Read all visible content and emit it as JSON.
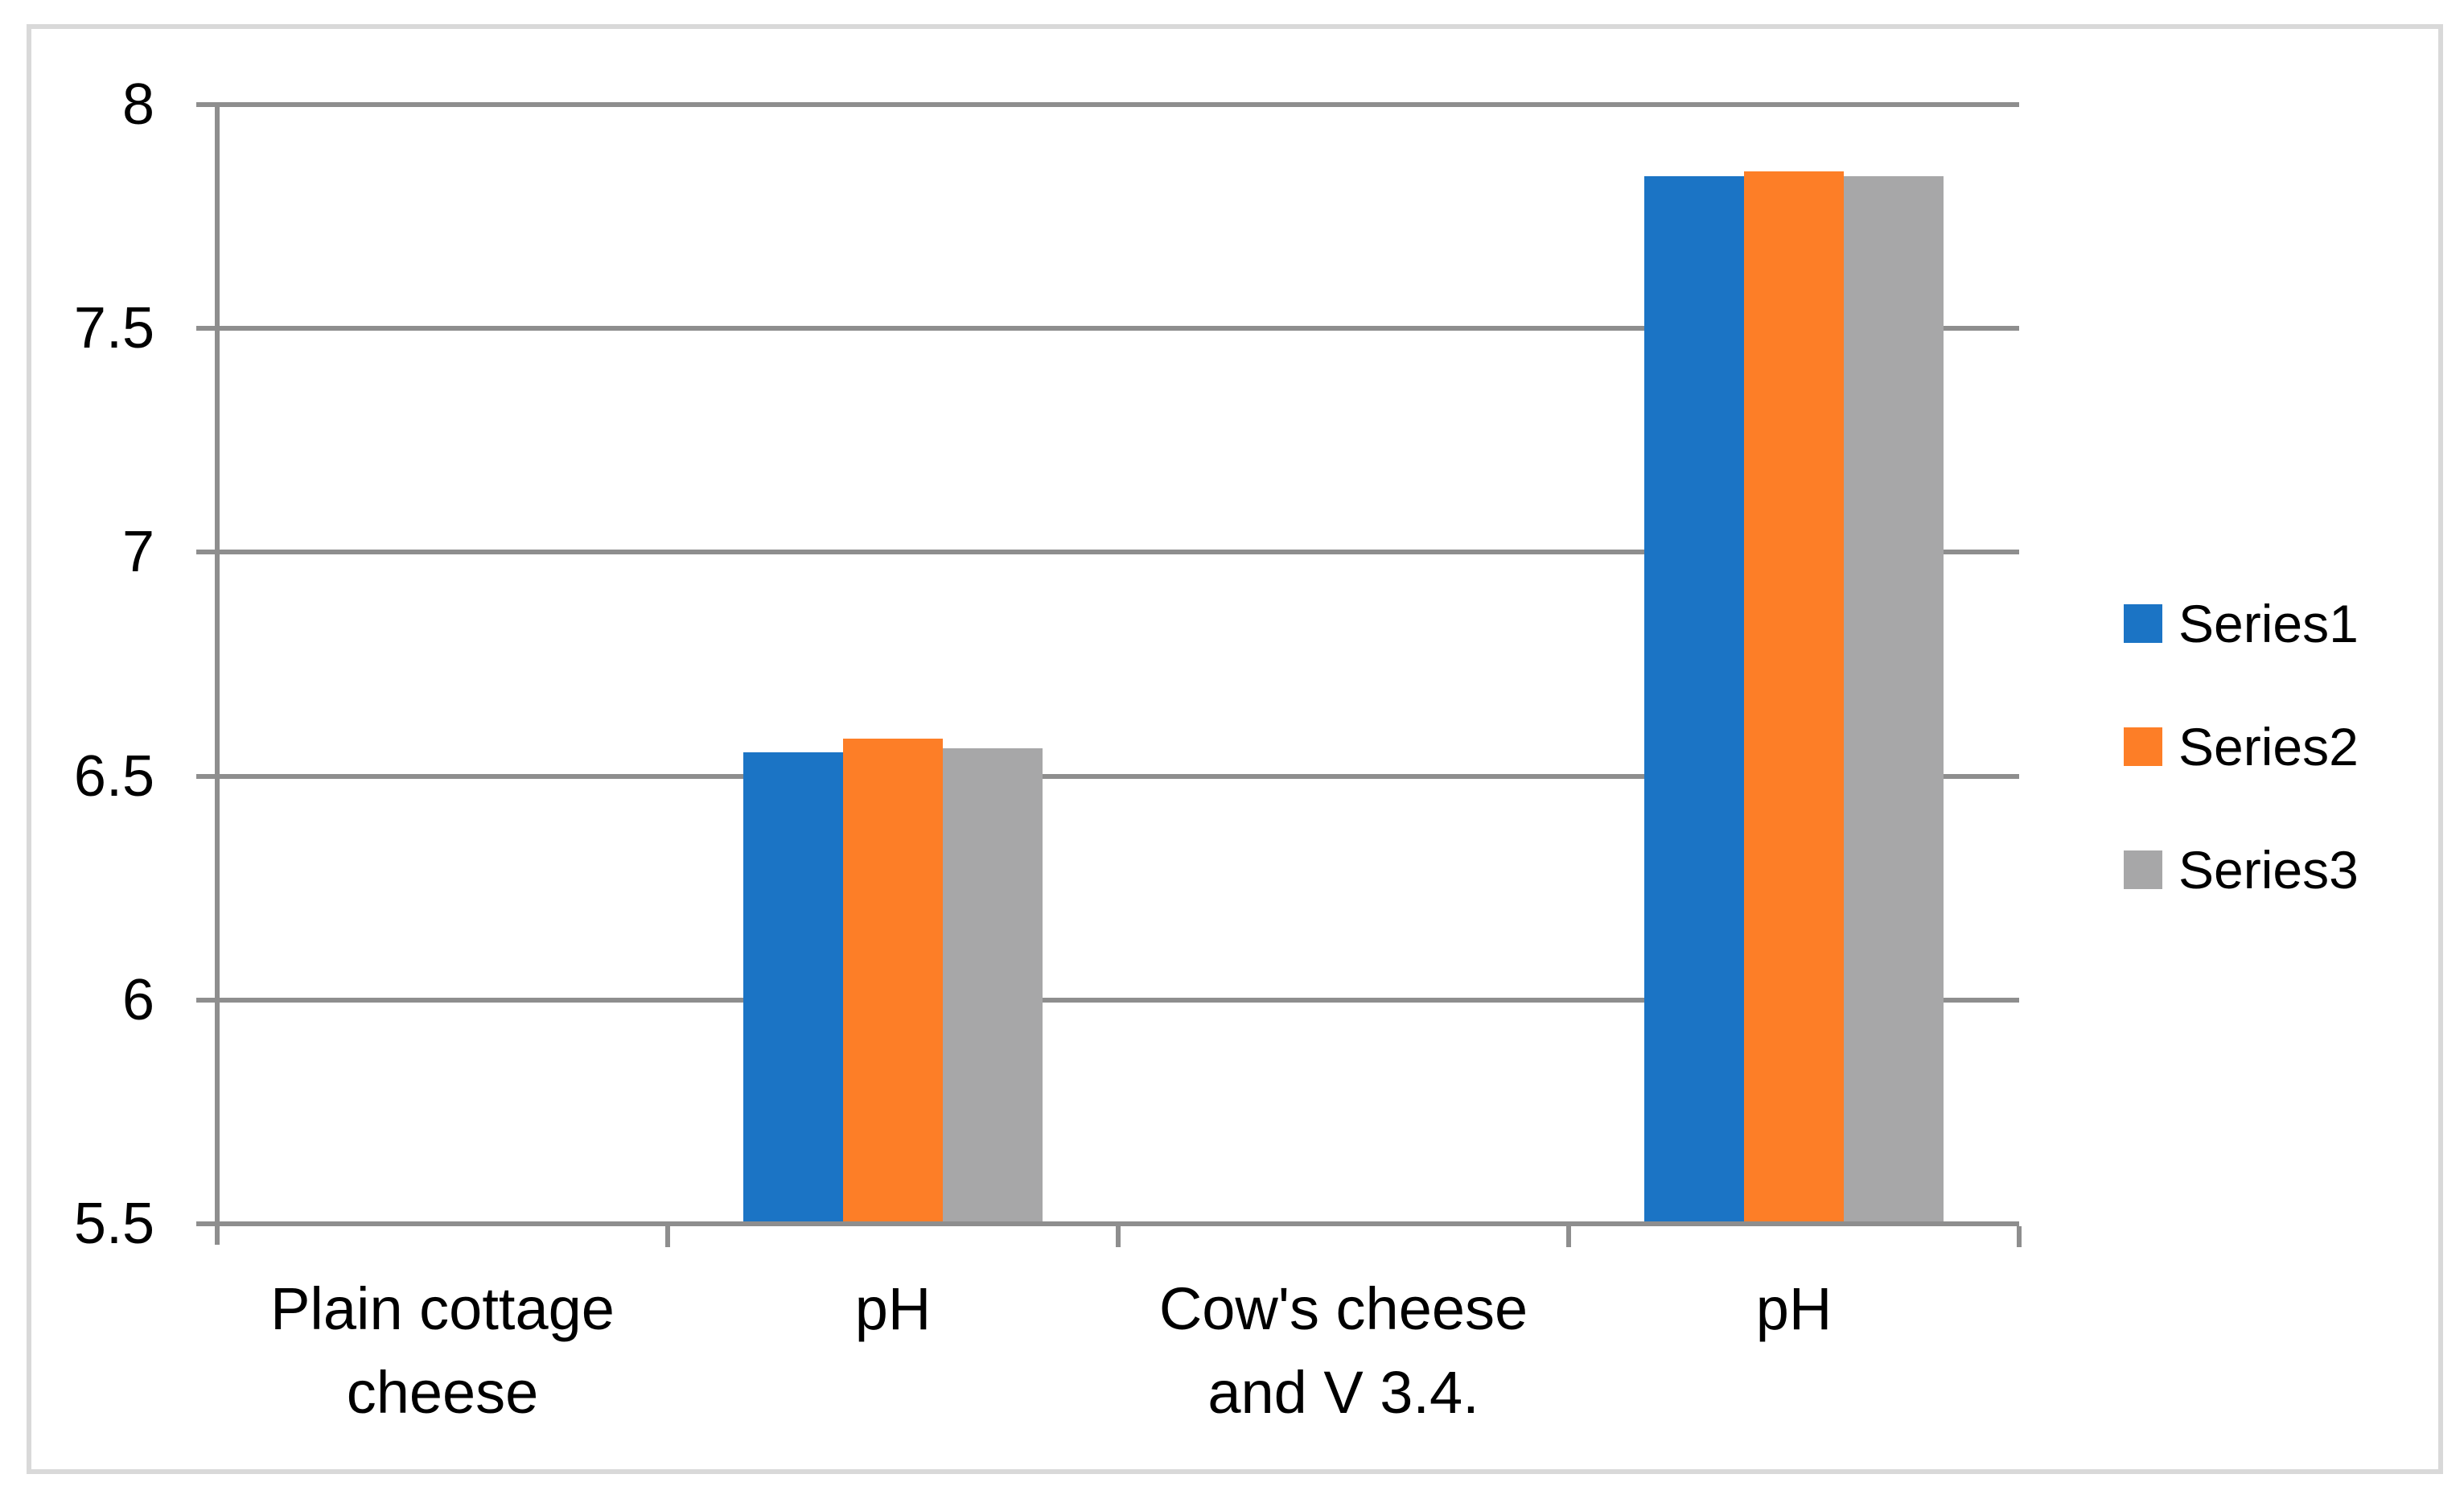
{
  "chart_data": {
    "type": "bar",
    "title": "",
    "xlabel": "",
    "ylabel": "",
    "categories": [
      "Plain cottage cheese",
      "pH",
      "Cow's cheese and V 3.4.",
      "pH"
    ],
    "categories_multiline": [
      "Plain cottage\ncheese",
      "pH",
      "Cow's cheese\nand V 3.4.",
      "pH"
    ],
    "series": [
      {
        "name": "Series1",
        "color": "#1B74C5",
        "values": [
          null,
          6.55,
          null,
          7.84
        ]
      },
      {
        "name": "Series2",
        "color": "#FD7E27",
        "values": [
          null,
          6.58,
          null,
          7.85
        ]
      },
      {
        "name": "Series3",
        "color": "#A7A7A8",
        "values": [
          null,
          6.56,
          null,
          7.84
        ]
      }
    ],
    "ylim": [
      5.5,
      8
    ],
    "ytick_step": 0.5,
    "yticks": [
      "8",
      "7.5",
      "7",
      "6.5",
      "6",
      "5.5"
    ],
    "grid": "horizontal",
    "legend_position": "right",
    "style": {
      "grid": "#8E8E8E",
      "axis": "#8E8E8E",
      "frame": "#D9D9D9",
      "text": "#000000",
      "background": "#FFFFFF"
    }
  },
  "legend": {
    "items": [
      {
        "label": "Series1"
      },
      {
        "label": "Series2"
      },
      {
        "label": "Series3"
      }
    ]
  }
}
